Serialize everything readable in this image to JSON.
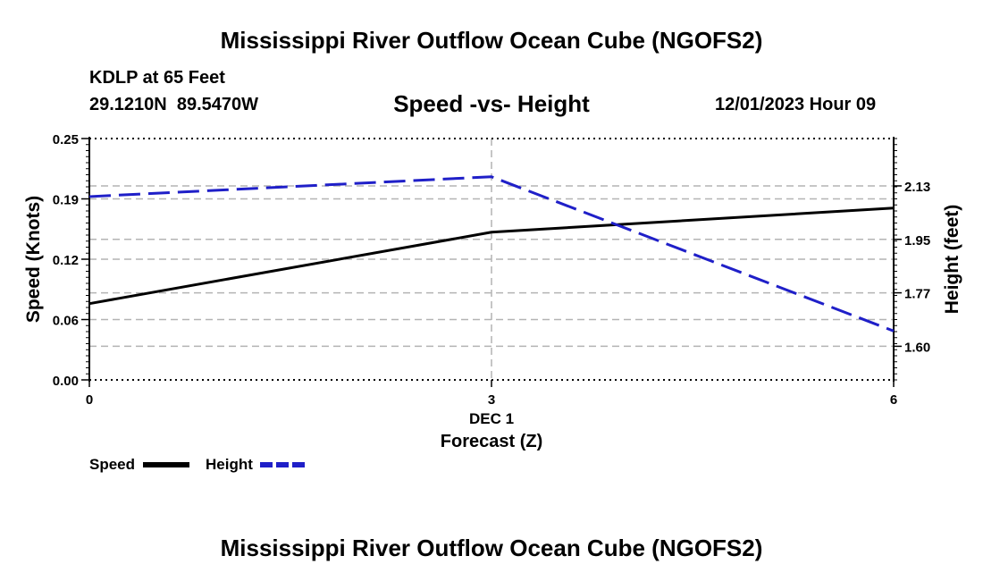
{
  "header": {
    "main_title": "Mississippi River Outflow Ocean Cube (NGOFS2)",
    "station": "KDLP at 65 Feet",
    "latitude": "29.1210N",
    "longitude": "89.5470W",
    "subtitle": "Speed -vs- Height",
    "datetime": "12/01/2023 Hour 09"
  },
  "footer": {
    "main_title": "Mississippi River Outflow Ocean Cube (NGOFS2)"
  },
  "chart_data": {
    "type": "line",
    "title": "Speed -vs- Height",
    "xlabel": "Forecast (Z)",
    "x_date_label": "DEC 1",
    "ylabel": "Speed (Knots)",
    "y2label": "Height (feet)",
    "x": [
      0,
      3,
      6
    ],
    "x_ticks": [
      "0",
      "3",
      "6"
    ],
    "xlim": [
      0,
      6
    ],
    "ylim": [
      0,
      0.25
    ],
    "y_ticks": [
      "0.00",
      "0.06",
      "0.12",
      "0.19",
      "0.25"
    ],
    "y_tick_values": [
      0,
      0.0625,
      0.125,
      0.1875,
      0.25
    ],
    "y2lim": [
      1.49,
      2.28
    ],
    "y2_ticks": [
      "1.60",
      "1.77",
      "1.95",
      "2.13"
    ],
    "y2_tick_values": [
      1.6,
      1.775,
      1.95,
      2.125
    ],
    "grid": true,
    "series": [
      {
        "name": "Speed",
        "axis": "left",
        "color": "#000000",
        "style": "solid",
        "values": [
          0.079,
          0.153,
          0.178
        ]
      },
      {
        "name": "Height",
        "axis": "right",
        "color": "#1f1fc8",
        "style": "dashed",
        "values": [
          2.09,
          2.155,
          1.65
        ]
      }
    ],
    "legend": [
      {
        "label": "Speed",
        "color": "#000000"
      },
      {
        "label": "Height",
        "color": "#1f1fc8"
      }
    ]
  }
}
